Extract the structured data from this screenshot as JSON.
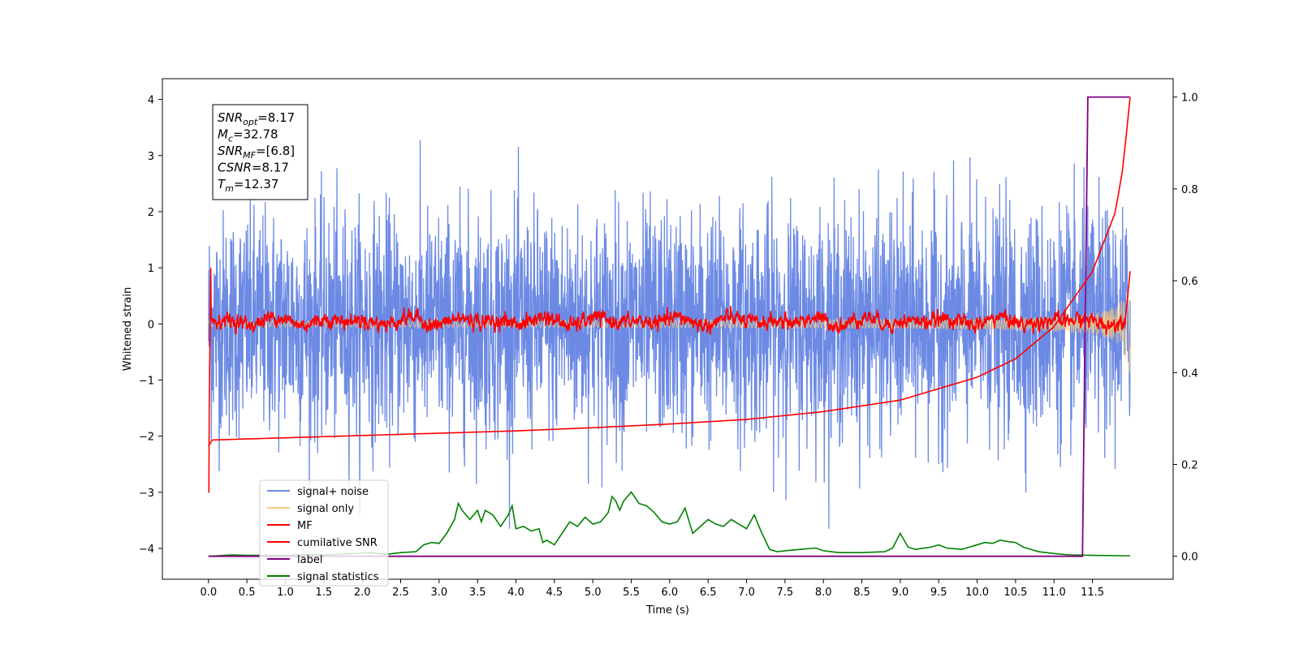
{
  "chart_data": {
    "type": "line",
    "xlabel": "Time (s)",
    "ylabel": "Whitened strain",
    "xlim": [
      -0.6,
      12.55
    ],
    "ylim": [
      -4.55,
      4.37
    ],
    "y2lim": [
      -0.05,
      1.04
    ],
    "xticks": [
      0.0,
      0.5,
      1.0,
      1.5,
      2.0,
      2.5,
      3.0,
      3.5,
      4.0,
      4.5,
      5.0,
      5.5,
      6.0,
      6.5,
      7.0,
      7.5,
      8.0,
      8.5,
      9.0,
      9.5,
      10.0,
      10.5,
      11.0,
      11.5
    ],
    "xtick_labels": [
      "0.0",
      "0.5",
      "1.0",
      "1.5",
      "2.0",
      "2.5",
      "3.0",
      "3.5",
      "4.0",
      "4.5",
      "5.0",
      "5.5",
      "6.0",
      "6.5",
      "7.0",
      "7.5",
      "8.0",
      "8.5",
      "9.0",
      "9.5",
      "10.0",
      "10.5",
      "11.0",
      "11.5"
    ],
    "yticks": [
      -4,
      -3,
      -2,
      -1,
      0,
      1,
      2,
      3,
      4
    ],
    "ytick_labels": [
      "−4",
      "−3",
      "−2",
      "−1",
      "0",
      "1",
      "2",
      "3",
      "4"
    ],
    "y2ticks": [
      0.0,
      0.2,
      0.4,
      0.6,
      0.8,
      1.0
    ],
    "y2tick_labels": [
      "0.0",
      "0.2",
      "0.4",
      "0.6",
      "0.8",
      "1.0"
    ],
    "grid": false,
    "legend_position": "lower-left",
    "annotation": [
      {
        "base": "SNR",
        "sub": "opt",
        "rest": "=8.17"
      },
      {
        "base": "M",
        "sub": "c",
        "rest": "=32.78"
      },
      {
        "base": "SNR",
        "sub": "MF",
        "rest": "=[6.8]"
      },
      {
        "base": "CSNR",
        "sub": "",
        "rest": "=8.17"
      },
      {
        "base": "T",
        "sub": "m",
        "rest": "=12.37"
      }
    ],
    "series": [
      {
        "name": "signal+ noise",
        "axis": "left",
        "color": "#6c8ae4",
        "style": "noise",
        "x_start": 0.0,
        "x_end": 11.99,
        "amplitude_sigma": 1.0
      },
      {
        "name": "signal only",
        "axis": "left",
        "color": "#f5c77e",
        "style": "chirp",
        "x_start": 0.0,
        "x_end": 11.99
      },
      {
        "name": "MF",
        "axis": "left",
        "color": "#ff0000",
        "style": "mf",
        "x_start": 0.0,
        "x_end": 11.99
      },
      {
        "name": "cumilative SNR",
        "axis": "right",
        "color": "#ff0000",
        "x": [
          0.0,
          0.001,
          1.0,
          2.0,
          3.0,
          4.0,
          5.0,
          6.0,
          7.0,
          8.0,
          9.0,
          10.0,
          10.5,
          11.0,
          11.5,
          11.8,
          11.9,
          11.99
        ],
        "values": [
          0.24,
          0.253,
          0.258,
          0.263,
          0.268,
          0.273,
          0.28,
          0.288,
          0.298,
          0.315,
          0.34,
          0.39,
          0.43,
          0.5,
          0.62,
          0.75,
          0.85,
          1.0
        ]
      },
      {
        "name": "label",
        "axis": "right",
        "color": "#800080",
        "x": [
          0.0,
          11.37,
          11.44,
          11.99
        ],
        "values": [
          0.0,
          0.0,
          1.0,
          1.0
        ]
      },
      {
        "name": "signal statistics",
        "axis": "right",
        "color": "#008000",
        "x": [
          0.0,
          0.3,
          0.5,
          1.0,
          1.3,
          1.5,
          1.8,
          2.1,
          2.3,
          2.5,
          2.7,
          2.8,
          2.9,
          3.0,
          3.1,
          3.2,
          3.25,
          3.3,
          3.4,
          3.5,
          3.55,
          3.6,
          3.7,
          3.8,
          3.9,
          3.95,
          4.0,
          4.1,
          4.2,
          4.3,
          4.35,
          4.4,
          4.5,
          4.6,
          4.7,
          4.8,
          4.9,
          5.0,
          5.1,
          5.2,
          5.25,
          5.3,
          5.35,
          5.4,
          5.5,
          5.6,
          5.7,
          5.8,
          5.9,
          6.0,
          6.1,
          6.2,
          6.3,
          6.4,
          6.5,
          6.6,
          6.7,
          6.8,
          6.9,
          7.0,
          7.1,
          7.2,
          7.3,
          7.4,
          7.5,
          7.7,
          7.9,
          8.0,
          8.2,
          8.5,
          8.8,
          8.9,
          9.0,
          9.1,
          9.2,
          9.4,
          9.5,
          9.6,
          9.8,
          9.9,
          10.0,
          10.1,
          10.2,
          10.3,
          10.4,
          10.5,
          10.6,
          10.7,
          10.8,
          11.0,
          11.2,
          11.5,
          11.99
        ],
        "values": [
          0.0,
          0.003,
          0.002,
          0.002,
          0.004,
          0.003,
          0.005,
          0.008,
          0.004,
          0.008,
          0.01,
          0.025,
          0.03,
          0.028,
          0.05,
          0.08,
          0.115,
          0.1,
          0.08,
          0.1,
          0.075,
          0.1,
          0.09,
          0.065,
          0.09,
          0.11,
          0.06,
          0.065,
          0.055,
          0.06,
          0.03,
          0.035,
          0.025,
          0.05,
          0.075,
          0.065,
          0.085,
          0.07,
          0.075,
          0.095,
          0.13,
          0.12,
          0.1,
          0.12,
          0.14,
          0.115,
          0.11,
          0.095,
          0.075,
          0.07,
          0.075,
          0.105,
          0.05,
          0.065,
          0.08,
          0.07,
          0.065,
          0.08,
          0.07,
          0.06,
          0.09,
          0.05,
          0.015,
          0.01,
          0.012,
          0.015,
          0.018,
          0.012,
          0.008,
          0.008,
          0.01,
          0.018,
          0.05,
          0.02,
          0.015,
          0.02,
          0.025,
          0.018,
          0.015,
          0.02,
          0.025,
          0.03,
          0.028,
          0.035,
          0.032,
          0.03,
          0.02,
          0.015,
          0.01,
          0.006,
          0.003,
          0.002,
          0.001
        ]
      }
    ]
  }
}
